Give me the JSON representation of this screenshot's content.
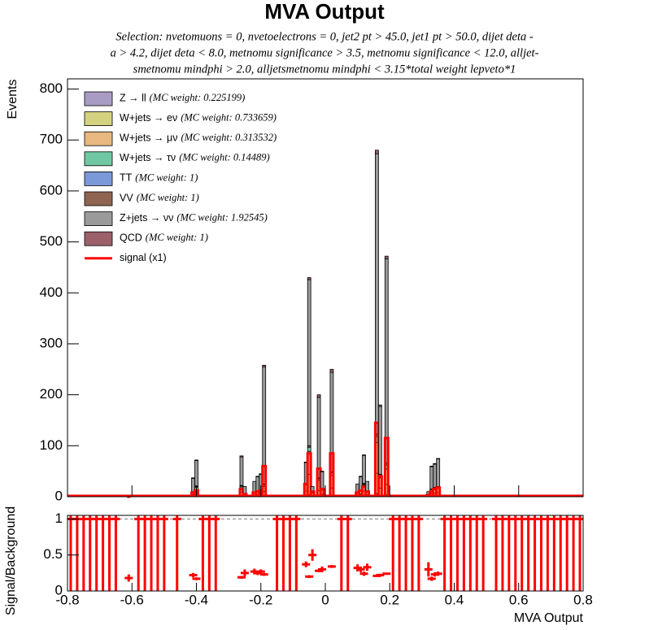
{
  "chart_data": [
    {
      "type": "stacked-histogram",
      "title": "MVA Output",
      "subtitle": [
        "Selection: nvetomuons = 0, nvetoelectrons = 0, jet2 pt > 45.0, jet1 pt > 50.0, dijet deta -",
        "a > 4.2, dijet deta < 8.0, metnomu significance > 3.5, metnomu significance < 12.0, alljet-",
        "smetnomu mindphi > 2.0, alljetsmetnomu mindphi < 3.15*total weight lepveto*1"
      ],
      "ylabel": "Events",
      "bin_width": 0.01,
      "x": [
        -0.61,
        -0.41,
        -0.4,
        -0.26,
        -0.25,
        -0.22,
        -0.21,
        -0.2,
        -0.19,
        -0.06,
        -0.05,
        -0.04,
        -0.02,
        -0.01,
        0.02,
        0.1,
        0.11,
        0.12,
        0.13,
        0.16,
        0.17,
        0.19,
        0.32,
        0.33,
        0.34,
        0.35
      ],
      "series": [
        {
          "name": "Z → ll",
          "note": "(MC weight: 0.225199)",
          "color": "#a99cc4",
          "values": [
            0,
            0,
            1,
            1,
            0,
            0,
            0,
            0,
            2,
            1,
            4,
            0,
            2,
            0,
            2,
            0,
            0,
            1,
            0,
            6,
            2,
            4,
            0,
            0,
            1,
            1
          ]
        },
        {
          "name": "W+jets → eν",
          "note": "(MC weight: 0.733659)",
          "color": "#d5d27f",
          "values": [
            0,
            4,
            7,
            8,
            2,
            3,
            4,
            4,
            8,
            10,
            40,
            3,
            10,
            5,
            15,
            3,
            5,
            10,
            4,
            40,
            15,
            20,
            2,
            6,
            6,
            7
          ]
        },
        {
          "name": "W+jets → μν",
          "note": "(MC weight: 0.313532)",
          "color": "#e8b880",
          "values": [
            1,
            5,
            10,
            10,
            3,
            4,
            5,
            6,
            10,
            12,
            45,
            4,
            20,
            8,
            25,
            4,
            6,
            12,
            5,
            60,
            20,
            30,
            2,
            8,
            8,
            9
          ]
        },
        {
          "name": "W+jets → τν",
          "note": "(MC weight: 0.14489)",
          "color": "#6fc8a2",
          "values": [
            0,
            1,
            2,
            2,
            0,
            1,
            1,
            1,
            3,
            2,
            8,
            1,
            3,
            1,
            5,
            1,
            1,
            2,
            1,
            12,
            5,
            8,
            0,
            1,
            2,
            2
          ]
        },
        {
          "name": "TT",
          "note": "(MC weight: 1)",
          "color": "#7b98d8",
          "values": [
            0,
            0,
            0,
            0,
            0,
            0,
            0,
            0,
            0,
            0,
            0,
            0,
            0,
            0,
            0,
            0,
            0,
            0,
            0,
            0,
            0,
            0,
            0,
            0,
            0,
            0
          ]
        },
        {
          "name": "VV",
          "note": "(MC weight: 1)",
          "color": "#8f6552",
          "values": [
            0,
            0,
            1,
            1,
            0,
            0,
            0,
            0,
            2,
            1,
            3,
            0,
            2,
            1,
            2,
            0,
            0,
            1,
            0,
            5,
            2,
            4,
            0,
            0,
            1,
            1
          ]
        },
        {
          "name": "Z+jets → νν",
          "note": "(MC weight: 1.92545)",
          "color": "#9a9a9a",
          "values": [
            2,
            26,
            50,
            56,
            15,
            22,
            29,
            33,
            230,
            41,
            326,
            12,
            158,
            34,
            195,
            17,
            27,
            55,
            20,
            550,
            133,
            401,
            6,
            44,
            46,
            54
          ]
        },
        {
          "name": "QCD",
          "note": "(MC weight: 1)",
          "color": "#9c6069",
          "values": [
            0,
            1,
            1,
            2,
            0,
            0,
            1,
            1,
            3,
            1,
            4,
            0,
            5,
            1,
            6,
            0,
            1,
            1,
            0,
            7,
            3,
            5,
            0,
            1,
            1,
            1
          ]
        }
      ],
      "signal": {
        "name": "signal (x1)",
        "color": "#ff0000",
        "values": [
          0,
          8,
          12,
          15,
          5,
          8,
          10,
          12,
          60,
          25,
          85,
          10,
          55,
          15,
          85,
          8,
          12,
          20,
          10,
          145,
          40,
          115,
          3,
          10,
          15,
          18
        ]
      },
      "xlim": [
        -0.8,
        0.8
      ],
      "xticks": [
        -0.8,
        -0.6,
        -0.4,
        -0.2,
        0,
        0.2,
        0.4,
        0.6,
        0.8
      ],
      "ylim": [
        0,
        820
      ],
      "yticks": [
        0,
        100,
        200,
        300,
        400,
        500,
        600,
        700,
        800
      ]
    },
    {
      "type": "ratio",
      "ylabel": "Signal/Background",
      "xlabel": "MVA Output",
      "color": "#ff0000",
      "x": [
        -0.61,
        -0.41,
        -0.4,
        -0.26,
        -0.25,
        -0.22,
        -0.21,
        -0.2,
        -0.19,
        -0.06,
        -0.05,
        -0.04,
        -0.02,
        -0.01,
        0.02,
        0.1,
        0.11,
        0.12,
        0.13,
        0.16,
        0.17,
        0.19,
        0.32,
        0.33,
        0.34,
        0.35,
        -0.79,
        -0.77,
        -0.75,
        -0.73,
        -0.71,
        -0.69,
        -0.67,
        -0.65,
        -0.58,
        -0.56,
        -0.54,
        -0.52,
        -0.5,
        -0.46,
        -0.38,
        -0.36,
        -0.34,
        -0.15,
        -0.13,
        -0.11,
        -0.09,
        0.05,
        0.07,
        0.21,
        0.23,
        0.25,
        0.27,
        0.29,
        0.37,
        0.39,
        0.41,
        0.43,
        0.45,
        0.47,
        0.49,
        0.53,
        0.55,
        0.57,
        0.59,
        0.61,
        0.63,
        0.65,
        0.67,
        0.69,
        0.71,
        0.73,
        0.75,
        0.77,
        0.79
      ],
      "values": [
        0.18,
        0.22,
        0.17,
        0.19,
        0.25,
        0.27,
        0.25,
        0.27,
        0.23,
        0.37,
        0.2,
        0.5,
        0.28,
        0.3,
        0.34,
        0.32,
        0.3,
        0.24,
        0.33,
        0.21,
        0.22,
        0.24,
        0.3,
        0.17,
        0.23,
        0.24,
        1,
        1,
        1,
        1,
        1,
        1,
        1,
        1,
        1,
        1,
        1,
        1,
        1,
        1,
        1,
        1,
        1,
        1,
        1,
        1,
        1,
        1,
        1,
        1,
        1,
        1,
        1,
        1,
        1,
        1,
        1,
        1,
        1,
        1,
        1,
        1,
        1,
        1,
        1,
        1,
        1,
        1,
        1,
        1,
        1,
        1,
        1,
        1,
        1
      ],
      "errors": [
        0.05,
        0.03,
        0.02,
        0.02,
        0.05,
        0.04,
        0.03,
        0.03,
        0.02,
        0.04,
        0.02,
        0.08,
        0.02,
        0.04,
        0.02,
        0.05,
        0.04,
        0.03,
        0.05,
        0.01,
        0.02,
        0.01,
        0.1,
        0.03,
        0.03,
        0.03,
        1,
        1,
        1,
        1,
        1,
        1,
        1,
        1,
        1,
        1,
        1,
        1,
        1,
        1,
        1,
        1,
        1,
        1,
        1,
        1,
        1,
        1,
        1,
        1,
        1,
        1,
        1,
        1,
        1,
        1,
        1,
        1,
        1,
        1,
        1,
        1,
        1,
        1,
        1,
        1,
        1,
        1,
        1,
        1,
        1,
        1,
        1,
        1,
        1
      ],
      "hline": 1,
      "xlim": [
        -0.8,
        0.8
      ],
      "xticks": [
        -0.8,
        -0.6,
        -0.4,
        -0.2,
        0,
        0.2,
        0.4,
        0.6,
        0.8
      ],
      "ylim": [
        0,
        1.05
      ],
      "yticks": [
        0,
        0.5,
        1
      ]
    }
  ]
}
